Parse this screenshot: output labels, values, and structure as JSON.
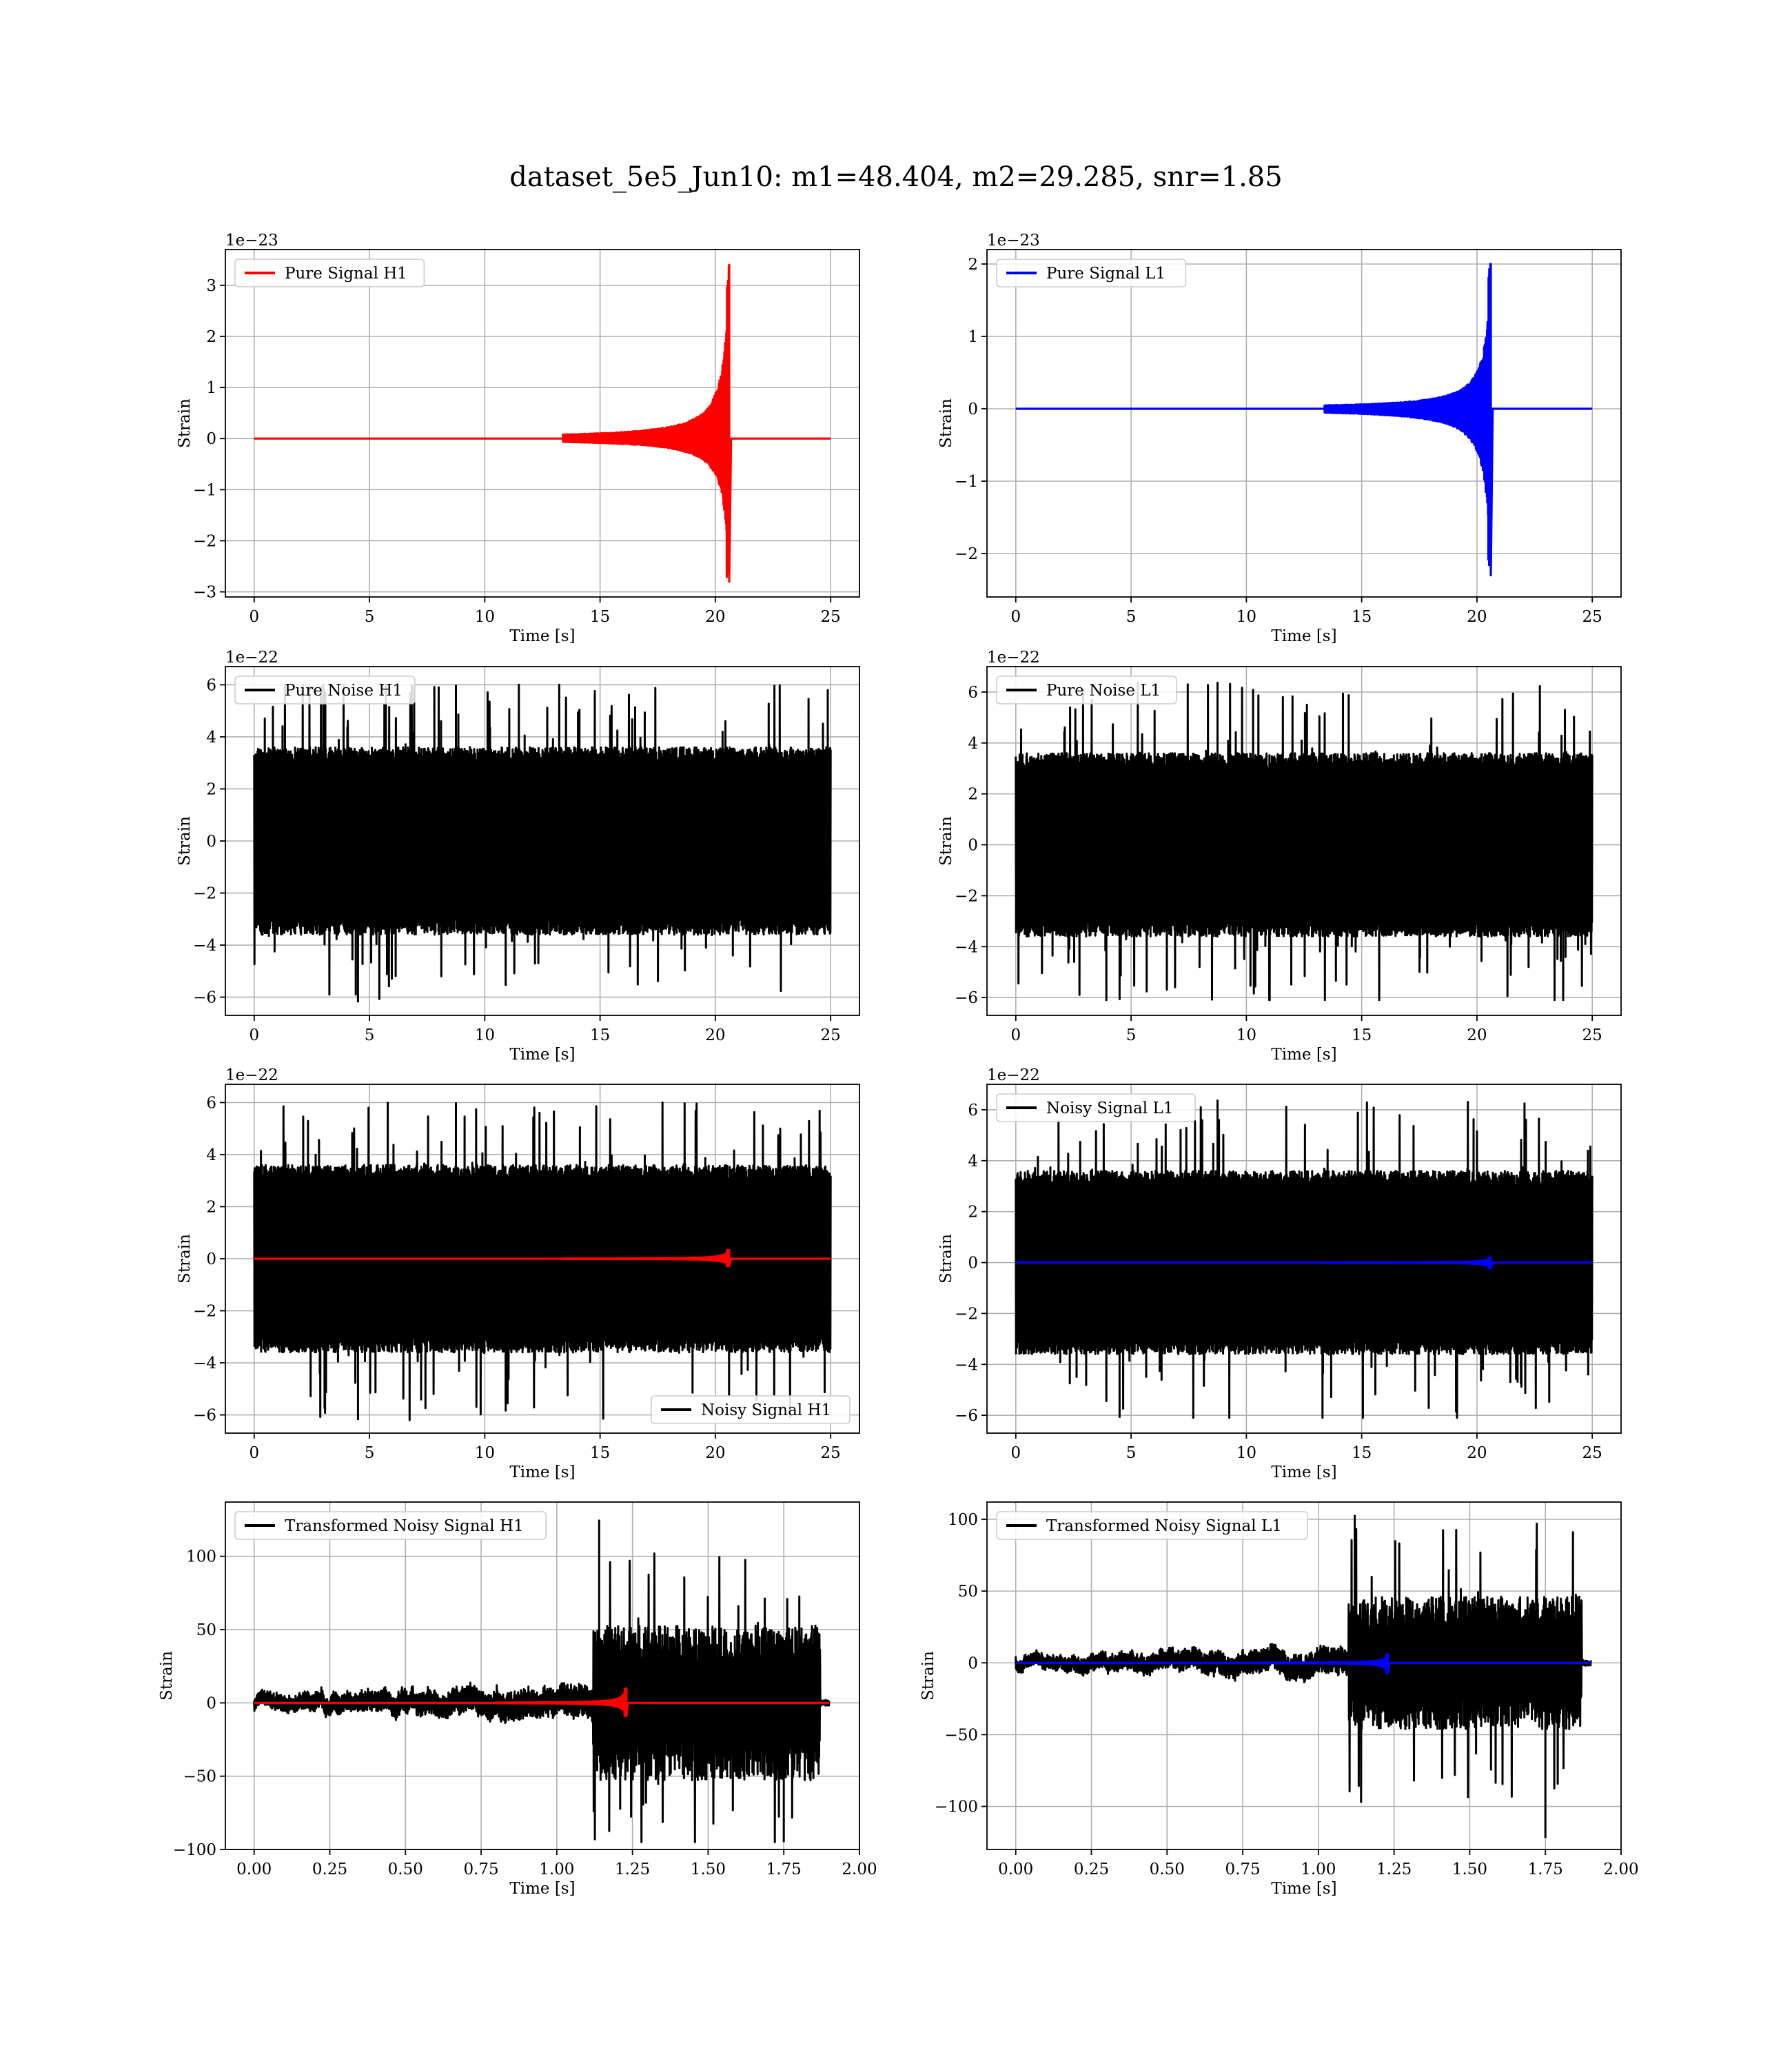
{
  "figure": {
    "title": "dataset_5e5_Jun10: m1=48.404, m2=29.285, snr=1.85"
  },
  "chart_data": [
    {
      "id": "pure-signal-h1",
      "type": "line",
      "xlabel": "Time [s]",
      "ylabel": "Strain",
      "offset_text": "1e−23",
      "xlim": [
        -1.25,
        26.25
      ],
      "ylim": [
        -3.1,
        3.7
      ],
      "xticks": [
        0,
        5,
        10,
        15,
        20,
        25
      ],
      "xtick_labels": [
        "0",
        "5",
        "10",
        "15",
        "20",
        "25"
      ],
      "yticks": [
        -3,
        -2,
        -1,
        0,
        1,
        2,
        3
      ],
      "ytick_labels": [
        "−3",
        "−2",
        "−1",
        "0",
        "1",
        "2",
        "3"
      ],
      "grid": true,
      "legend_placement": "upper-left",
      "series": [
        {
          "name": "Pure Signal H1",
          "color": "#ff0000",
          "kind": "chirp",
          "x_range": [
            0,
            25
          ],
          "merger_time": 20.6,
          "peak_pos": 3.4,
          "peak_neg": -2.8
        }
      ]
    },
    {
      "id": "pure-signal-l1",
      "type": "line",
      "xlabel": "Time [s]",
      "ylabel": "Strain",
      "offset_text": "1e−23",
      "xlim": [
        -1.25,
        26.25
      ],
      "ylim": [
        -2.6,
        2.2
      ],
      "xticks": [
        0,
        5,
        10,
        15,
        20,
        25
      ],
      "xtick_labels": [
        "0",
        "5",
        "10",
        "15",
        "20",
        "25"
      ],
      "yticks": [
        -2,
        -1,
        0,
        1,
        2
      ],
      "ytick_labels": [
        "−2",
        "−1",
        "0",
        "1",
        "2"
      ],
      "grid": true,
      "legend_placement": "upper-left",
      "series": [
        {
          "name": "Pure Signal L1",
          "color": "#0000ff",
          "kind": "chirp",
          "x_range": [
            0,
            25
          ],
          "merger_time": 20.6,
          "peak_pos": 2.0,
          "peak_neg": -2.3
        }
      ]
    },
    {
      "id": "pure-noise-h1",
      "type": "line",
      "xlabel": "Time [s]",
      "ylabel": "Strain",
      "offset_text": "1e−22",
      "xlim": [
        -1.25,
        26.25
      ],
      "ylim": [
        -6.7,
        6.7
      ],
      "xticks": [
        0,
        5,
        10,
        15,
        20,
        25
      ],
      "xtick_labels": [
        "0",
        "5",
        "10",
        "15",
        "20",
        "25"
      ],
      "yticks": [
        -6,
        -4,
        -2,
        0,
        2,
        4,
        6
      ],
      "ytick_labels": [
        "−6",
        "−4",
        "−2",
        "0",
        "2",
        "4",
        "6"
      ],
      "grid": true,
      "legend_placement": "upper-left",
      "series": [
        {
          "name": "Pure Noise H1",
          "color": "#000000",
          "kind": "noise",
          "x_range": [
            0,
            25
          ],
          "core": 3.6,
          "max": 6.0,
          "min": -6.2
        }
      ]
    },
    {
      "id": "pure-noise-l1",
      "type": "line",
      "xlabel": "Time [s]",
      "ylabel": "Strain",
      "offset_text": "1e−22",
      "xlim": [
        -1.25,
        26.25
      ],
      "ylim": [
        -6.7,
        7.0
      ],
      "xticks": [
        0,
        5,
        10,
        15,
        20,
        25
      ],
      "xtick_labels": [
        "0",
        "5",
        "10",
        "15",
        "20",
        "25"
      ],
      "yticks": [
        -6,
        -4,
        -2,
        0,
        2,
        4,
        6
      ],
      "ytick_labels": [
        "−6",
        "−4",
        "−2",
        "0",
        "2",
        "4",
        "6"
      ],
      "grid": true,
      "legend_placement": "upper-left",
      "series": [
        {
          "name": "Pure Noise L1",
          "color": "#000000",
          "kind": "noise",
          "x_range": [
            0,
            25
          ],
          "core": 3.6,
          "max": 6.4,
          "min": -6.1
        }
      ]
    },
    {
      "id": "noisy-signal-h1",
      "type": "line",
      "xlabel": "Time [s]",
      "ylabel": "Strain",
      "offset_text": "1e−22",
      "xlim": [
        -1.25,
        26.25
      ],
      "ylim": [
        -6.7,
        6.7
      ],
      "xticks": [
        0,
        5,
        10,
        15,
        20,
        25
      ],
      "xtick_labels": [
        "0",
        "5",
        "10",
        "15",
        "20",
        "25"
      ],
      "yticks": [
        -6,
        -4,
        -2,
        0,
        2,
        4,
        6
      ],
      "ytick_labels": [
        "−6",
        "−4",
        "−2",
        "0",
        "2",
        "4",
        "6"
      ],
      "grid": true,
      "legend_placement": "lower-right",
      "series": [
        {
          "name": "Noisy Signal H1",
          "color": "#000000",
          "kind": "noise",
          "x_range": [
            0,
            25
          ],
          "core": 3.6,
          "max": 6.0,
          "min": -6.2
        },
        {
          "color": "#ff0000",
          "kind": "chirp",
          "x_range": [
            0,
            25
          ],
          "merger_time": 20.6,
          "peak_pos": 0.34,
          "peak_neg": -0.28
        }
      ]
    },
    {
      "id": "noisy-signal-l1",
      "type": "line",
      "xlabel": "Time [s]",
      "ylabel": "Strain",
      "offset_text": "1e−22",
      "xlim": [
        -1.25,
        26.25
      ],
      "ylim": [
        -6.7,
        7.0
      ],
      "xticks": [
        0,
        5,
        10,
        15,
        20,
        25
      ],
      "xtick_labels": [
        "0",
        "5",
        "10",
        "15",
        "20",
        "25"
      ],
      "yticks": [
        -6,
        -4,
        -2,
        0,
        2,
        4,
        6
      ],
      "ytick_labels": [
        "−6",
        "−4",
        "−2",
        "0",
        "2",
        "4",
        "6"
      ],
      "grid": true,
      "legend_placement": "upper-left",
      "series": [
        {
          "name": "Noisy Signal L1",
          "color": "#000000",
          "kind": "noise",
          "x_range": [
            0,
            25
          ],
          "core": 3.6,
          "max": 6.4,
          "min": -6.1
        },
        {
          "color": "#0000ff",
          "kind": "chirp",
          "x_range": [
            0,
            25
          ],
          "merger_time": 20.6,
          "peak_pos": 0.2,
          "peak_neg": -0.23
        }
      ]
    },
    {
      "id": "transformed-noisy-signal-h1",
      "type": "line",
      "xlabel": "Time [s]",
      "ylabel": "Strain",
      "offset_text": "",
      "xlim": [
        -0.095,
        2.0
      ],
      "ylim": [
        -100,
        137
      ],
      "xticks": [
        0,
        0.25,
        0.5,
        0.75,
        1.0,
        1.25,
        1.5,
        1.75,
        2.0
      ],
      "xtick_labels": [
        "0.00",
        "0.25",
        "0.50",
        "0.75",
        "1.00",
        "1.25",
        "1.50",
        "1.75",
        "2.00"
      ],
      "yticks": [
        -100,
        -50,
        0,
        50,
        100
      ],
      "ytick_labels": [
        "−100",
        "−50",
        "0",
        "50",
        "100"
      ],
      "grid": true,
      "legend_placement": "upper-left",
      "series": [
        {
          "name": "Transformed Noisy Signal H1",
          "color": "#000000",
          "kind": "whitened",
          "x_range": [
            0,
            1.9
          ],
          "step_time": 1.12,
          "end_time": 1.87,
          "core_before": 8,
          "core_after": 48,
          "max": 125,
          "min": -95
        },
        {
          "color": "#ff0000",
          "kind": "chirp",
          "x_range": [
            0,
            1.9
          ],
          "merger_time": 1.23,
          "peak_pos": 10,
          "peak_neg": -9
        }
      ]
    },
    {
      "id": "transformed-noisy-signal-l1",
      "type": "line",
      "xlabel": "Time [s]",
      "ylabel": "Strain",
      "offset_text": "",
      "xlim": [
        -0.095,
        2.0
      ],
      "ylim": [
        -130,
        112
      ],
      "xticks": [
        0,
        0.25,
        0.5,
        0.75,
        1.0,
        1.25,
        1.5,
        1.75,
        2.0
      ],
      "xtick_labels": [
        "0.00",
        "0.25",
        "0.50",
        "0.75",
        "1.00",
        "1.25",
        "1.50",
        "1.75",
        "2.00"
      ],
      "yticks": [
        -100,
        -50,
        0,
        50,
        100
      ],
      "ytick_labels": [
        "−100",
        "−50",
        "0",
        "50",
        "100"
      ],
      "grid": true,
      "legend_placement": "upper-left",
      "series": [
        {
          "name": "Transformed Noisy Signal L1",
          "color": "#000000",
          "kind": "whitened",
          "x_range": [
            0,
            1.9
          ],
          "step_time": 1.1,
          "end_time": 1.87,
          "core_before": 7,
          "core_after": 42,
          "max": 103,
          "min": -122
        },
        {
          "color": "#0000ff",
          "kind": "chirp",
          "x_range": [
            0,
            1.9
          ],
          "merger_time": 1.23,
          "peak_pos": 6,
          "peak_neg": -7
        }
      ]
    }
  ]
}
